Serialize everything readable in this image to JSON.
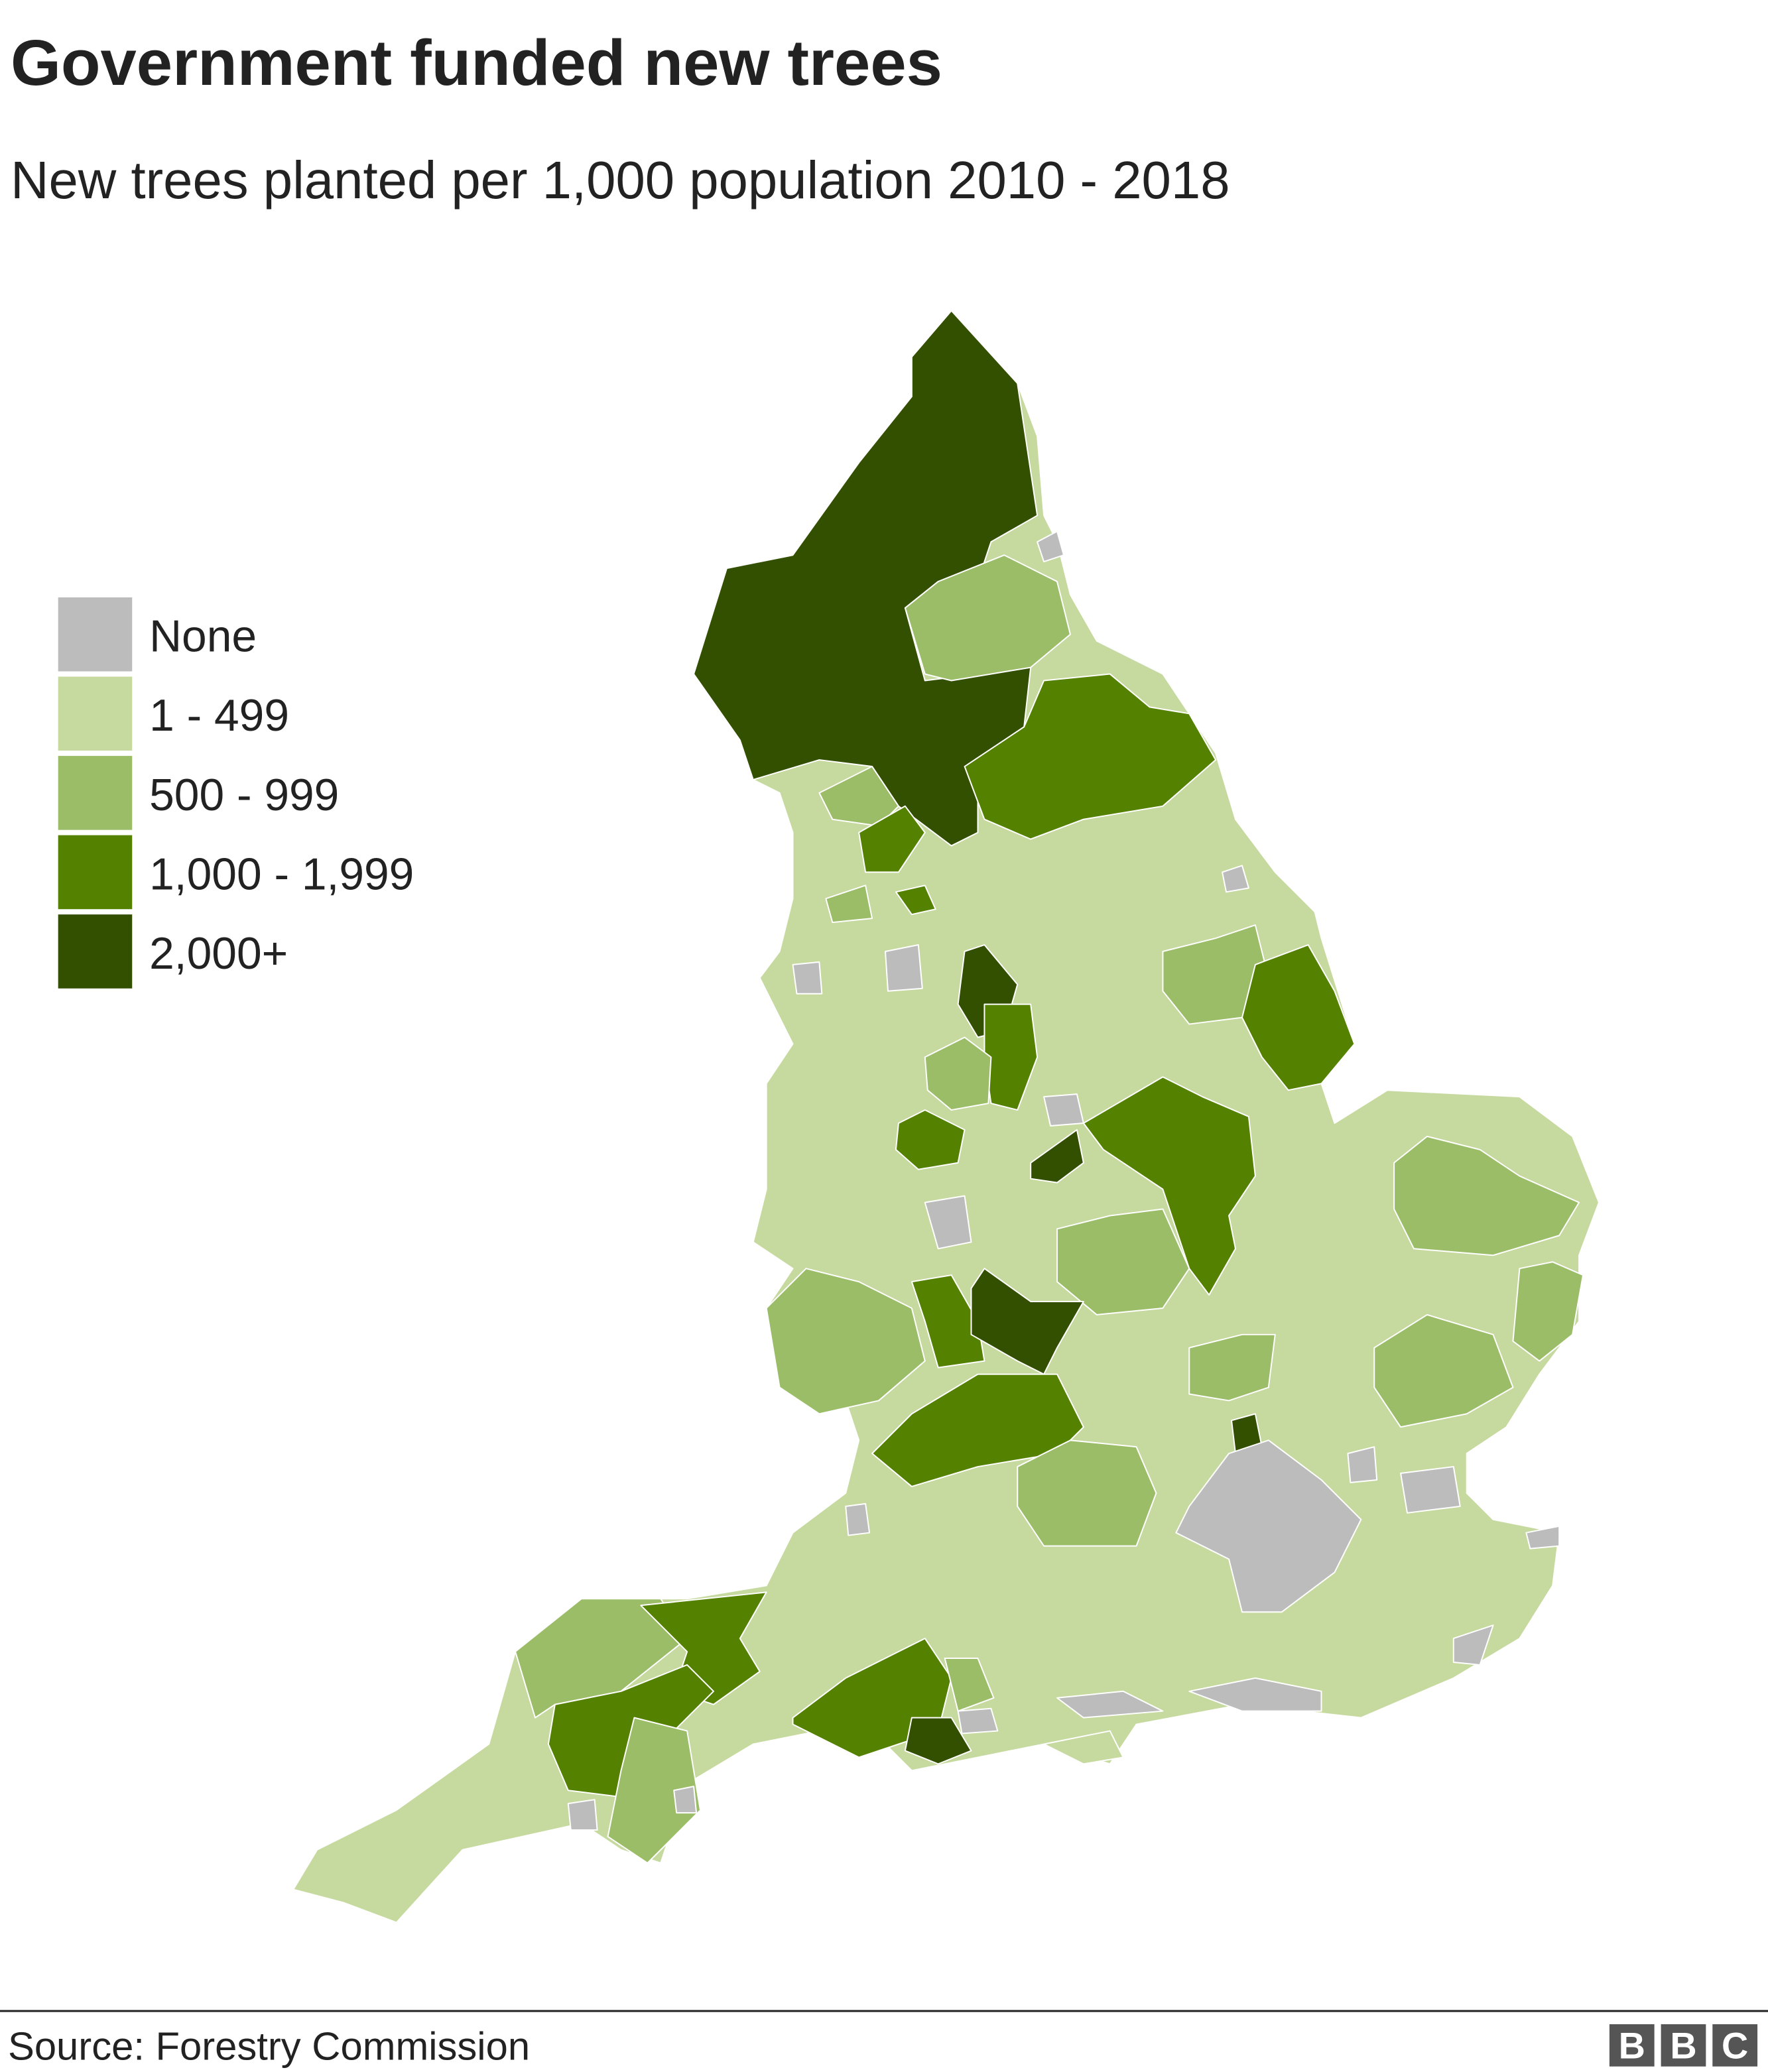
{
  "header": {
    "title": "Government funded new trees",
    "subtitle": "New trees planted per 1,000 population 2010 - 2018"
  },
  "legend": {
    "items": [
      {
        "label": "None",
        "color": "#bcbcbc"
      },
      {
        "label": "1 - 499",
        "color": "#c6d99e"
      },
      {
        "label": "500 - 999",
        "color": "#9bbd68"
      },
      {
        "label": "1,000 - 1,999",
        "color": "#548200"
      },
      {
        "label": "2,000+",
        "color": "#334f00"
      }
    ]
  },
  "footer": {
    "source": "Source: Forestry Commission",
    "logo": [
      "B",
      "B",
      "C"
    ]
  }
}
